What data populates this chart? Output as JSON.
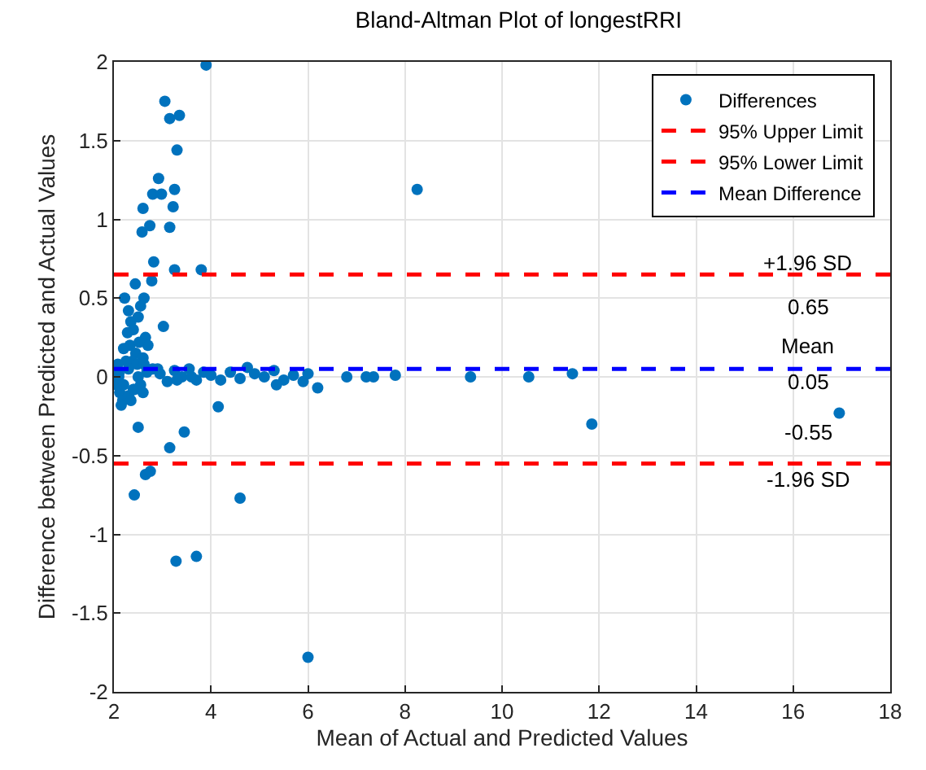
{
  "chart_data": {
    "type": "scatter",
    "title": "Bland-Altman Plot of longestRRI",
    "xlabel": "Mean of Actual and Predicted Values",
    "ylabel": "Difference between Predicted and Actual Values",
    "xlim": [
      2,
      18
    ],
    "xticks": [
      2,
      4,
      6,
      8,
      10,
      12,
      14,
      16,
      18
    ],
    "ylim": [
      -2,
      2
    ],
    "yticks": [
      -2,
      -1.5,
      -1,
      -0.5,
      0,
      0.5,
      1,
      1.5,
      2
    ],
    "grid": true,
    "legend": "top right",
    "series": [
      {
        "name": "Differences",
        "marker": "circle",
        "color": "#0072bd",
        "x": [
          3.9,
          3.05,
          3.15,
          3.35,
          3.3,
          2.92,
          3.25,
          2.8,
          2.98,
          2.6,
          3.22,
          2.58,
          2.74,
          3.15,
          2.82,
          3.25,
          3.8,
          2.78,
          2.44,
          2.22,
          2.62,
          3.02,
          2.3,
          2.35,
          2.4,
          2.5,
          2.55,
          2.65,
          2.7,
          2.28,
          2.33,
          2.45,
          2.52,
          2.6,
          2.38,
          2.48,
          2.2,
          2.25,
          2.1,
          2.05,
          2.08,
          2.12,
          2.18,
          2.3,
          2.42,
          2.55,
          2.68,
          2.8,
          2.95,
          3.1,
          3.25,
          3.4,
          3.55,
          3.7,
          3.85,
          4.0,
          4.2,
          4.4,
          4.6,
          4.75,
          4.9,
          5.1,
          5.3,
          5.5,
          5.7,
          5.9,
          6.0,
          2.1,
          2.2,
          2.3,
          2.4,
          2.5,
          2.62,
          2.9,
          3.3,
          3.6,
          2.15,
          2.35,
          2.6,
          5.35,
          6.2,
          6.8,
          7.2,
          7.35,
          7.8,
          8.25,
          9.35,
          10.55,
          11.45,
          11.85,
          16.95,
          4.15,
          2.5,
          3.45,
          3.15,
          2.65,
          2.75,
          2.42,
          4.6,
          3.28,
          3.7,
          6.0
        ],
        "values": [
          1.98,
          1.75,
          1.64,
          1.66,
          1.44,
          1.26,
          1.19,
          1.16,
          1.16,
          1.07,
          1.08,
          0.92,
          0.96,
          0.95,
          0.73,
          0.68,
          0.68,
          0.61,
          0.59,
          0.5,
          0.5,
          0.32,
          0.42,
          0.35,
          0.3,
          0.38,
          0.45,
          0.25,
          0.2,
          0.28,
          0.2,
          0.15,
          0.22,
          0.12,
          0.1,
          0.08,
          0.18,
          0.1,
          0.02,
          -0.05,
          0.08,
          -0.1,
          -0.15,
          -0.12,
          -0.08,
          -0.05,
          0.03,
          0.05,
          0.02,
          -0.03,
          0.04,
          0.0,
          0.05,
          -0.02,
          0.03,
          0.01,
          -0.02,
          0.03,
          -0.01,
          0.06,
          0.02,
          0.0,
          0.04,
          -0.02,
          0.01,
          -0.03,
          0.02,
          0.0,
          -0.05,
          0.05,
          -0.08,
          0.0,
          0.08,
          0.05,
          -0.02,
          0.0,
          -0.18,
          -0.15,
          -0.1,
          -0.05,
          -0.07,
          0.0,
          0.0,
          0.0,
          0.01,
          1.19,
          0.0,
          0.0,
          0.02,
          -0.3,
          -0.23,
          -0.19,
          -0.32,
          -0.35,
          -0.45,
          -0.62,
          -0.6,
          -0.75,
          -0.77,
          -1.17,
          -1.14,
          -1.78
        ]
      },
      {
        "name": "95% Upper Limit",
        "type": "line",
        "line_style": "dashed",
        "color": "#ff0000",
        "x": [
          2,
          18
        ],
        "values": [
          0.65,
          0.65
        ]
      },
      {
        "name": "95% Lower Limit",
        "type": "line",
        "line_style": "dashed",
        "color": "#ff0000",
        "x": [
          2,
          18
        ],
        "values": [
          -0.55,
          -0.55
        ]
      },
      {
        "name": "Mean Difference",
        "type": "line",
        "line_style": "dashed",
        "color": "#0000ff",
        "x": [
          2,
          18
        ],
        "values": [
          0.05,
          0.05
        ]
      }
    ],
    "annotations": [
      "+1.96 SD",
      "0.65",
      "Mean",
      "0.05",
      "-0.55",
      "-1.96 SD"
    ]
  }
}
